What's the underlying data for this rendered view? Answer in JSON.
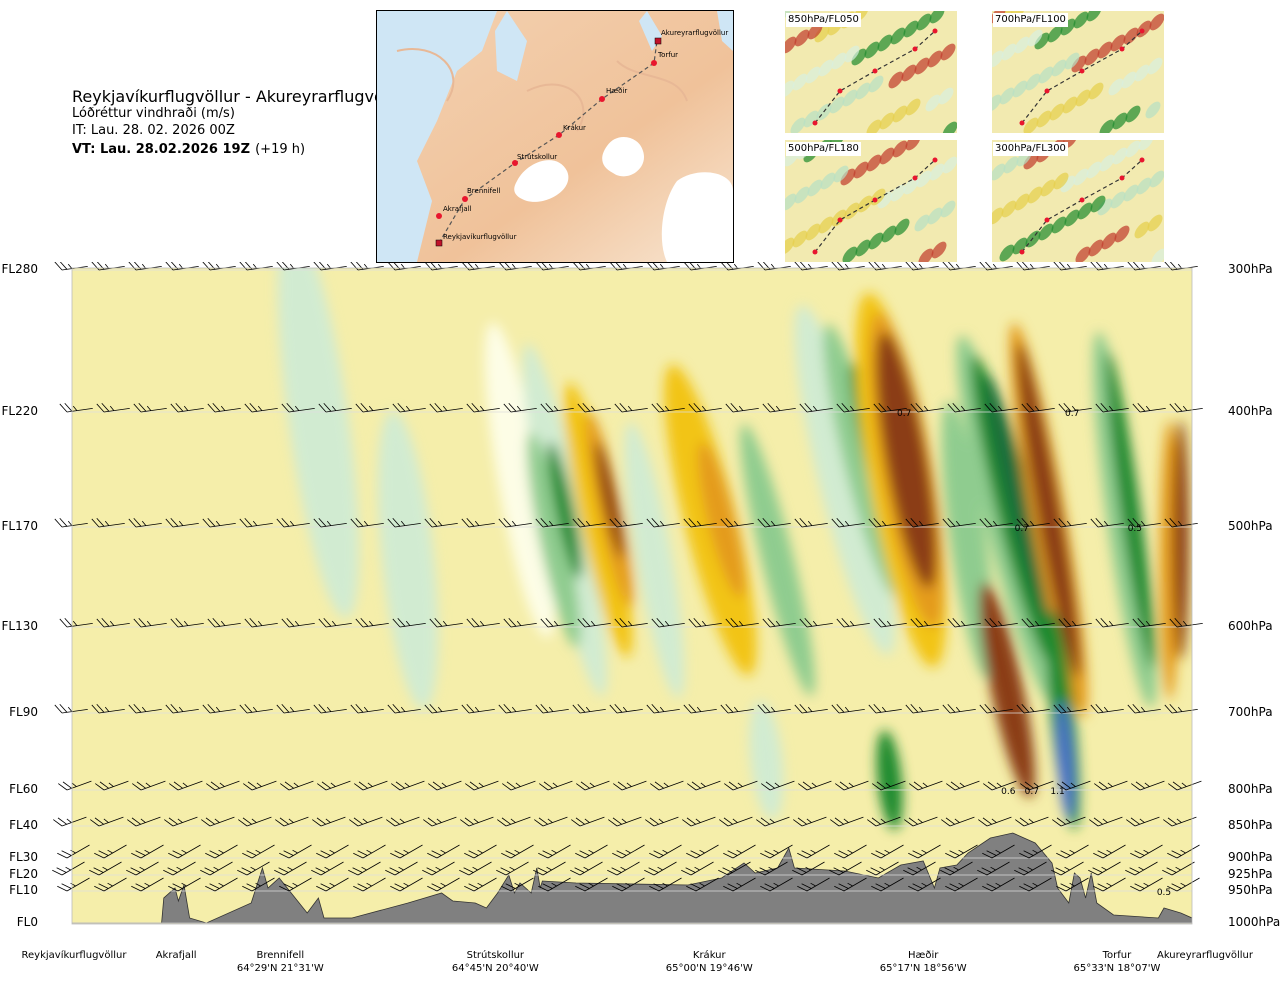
{
  "header": {
    "title": "Reykjavíkurflugvöllur - Akureyrarflugvöllur",
    "subtitle": "Lóðréttur vindhraði (m/s)",
    "issue_time": "IT: Lau. 28. 02. 2026 00Z",
    "valid_time_bold": "VT: Lau. 28.02.2026 19Z",
    "lead_time": "(+19 h)"
  },
  "map_inset": {
    "points": [
      {
        "name": "Akureyrarflugvöllur"
      },
      {
        "name": "Torfur"
      },
      {
        "name": "Hæðir"
      },
      {
        "name": "Krákur"
      },
      {
        "name": "Strútskollur"
      },
      {
        "name": "Brennifell"
      },
      {
        "name": "Akrafjall"
      },
      {
        "name": "Reykjavíkurflugvöllur"
      }
    ]
  },
  "level_panels": [
    {
      "label": "850hPa/FL050"
    },
    {
      "label": "700hPa/FL100"
    },
    {
      "label": "500hPa/FL180"
    },
    {
      "label": "300hPa/FL300"
    }
  ],
  "colors": {
    "plot_bg": "#f5eeaa",
    "terrain": "#808080",
    "strong_down": "#8b3e12",
    "moderate_down": "#e49b1e",
    "weak_down": "#f2c419",
    "very_weak_down": "#f6ea9e",
    "neutral": "#fdfde6",
    "weak_up": "#d1ebd1",
    "moderate_up": "#8fcc8f",
    "strong_up": "#1e8a2e",
    "very_strong_up": "#1b6e3b",
    "extreme_up": "#4a70c8"
  },
  "chart_data": {
    "type": "heatmap",
    "title": "Lóðréttur vindhraði (m/s)",
    "flight_levels": [
      "FL280",
      "FL220",
      "FL170",
      "FL130",
      "FL90",
      "FL60",
      "FL40",
      "FL30",
      "FL20",
      "FL10",
      "FL0"
    ],
    "pressure_levels": [
      "300hPa",
      "400hPa",
      "500hPa",
      "600hPa",
      "700hPa",
      "800hPa",
      "850hPa",
      "900hPa",
      "925hPa",
      "950hPa",
      "1000hPa"
    ],
    "waypoints": [
      {
        "name": "Reykjavíkurflugvöllur",
        "coord": "",
        "pos": 0.0
      },
      {
        "name": "Akrafjall",
        "coord": "",
        "pos": 0.093
      },
      {
        "name": "Brennifell",
        "coord": "64°29'N 21°31'W",
        "pos": 0.186
      },
      {
        "name": "Strútskollur",
        "coord": "64°45'N 20°40'W",
        "pos": 0.378
      },
      {
        "name": "Krákur",
        "coord": "65°00'N 19°46'W",
        "pos": 0.569
      },
      {
        "name": "Hæðir",
        "coord": "65°17'N 18°56'W",
        "pos": 0.76
      },
      {
        "name": "Torfur",
        "coord": "65°33'N 18°07'W",
        "pos": 0.933
      },
      {
        "name": "Akureyrarflugvöllur",
        "coord": "",
        "pos": 1.0
      }
    ],
    "annotations": [
      {
        "text": "0.7",
        "pos": 0.743,
        "level": "400hPa"
      },
      {
        "text": "0.7",
        "pos": 0.893,
        "level": "400hPa"
      },
      {
        "text": "0.7",
        "pos": 0.848,
        "level": "500hPa"
      },
      {
        "text": "0.5",
        "pos": 0.949,
        "level": "500hPa"
      },
      {
        "text": "0.6",
        "pos": 0.836,
        "level": "800hPa"
      },
      {
        "text": "0.7",
        "pos": 0.857,
        "level": "800hPa"
      },
      {
        "text": "1.1",
        "pos": 0.88,
        "level": "800hPa"
      },
      {
        "text": "0.5",
        "pos": 0.975,
        "level": "950hPa"
      }
    ],
    "grid": true
  }
}
